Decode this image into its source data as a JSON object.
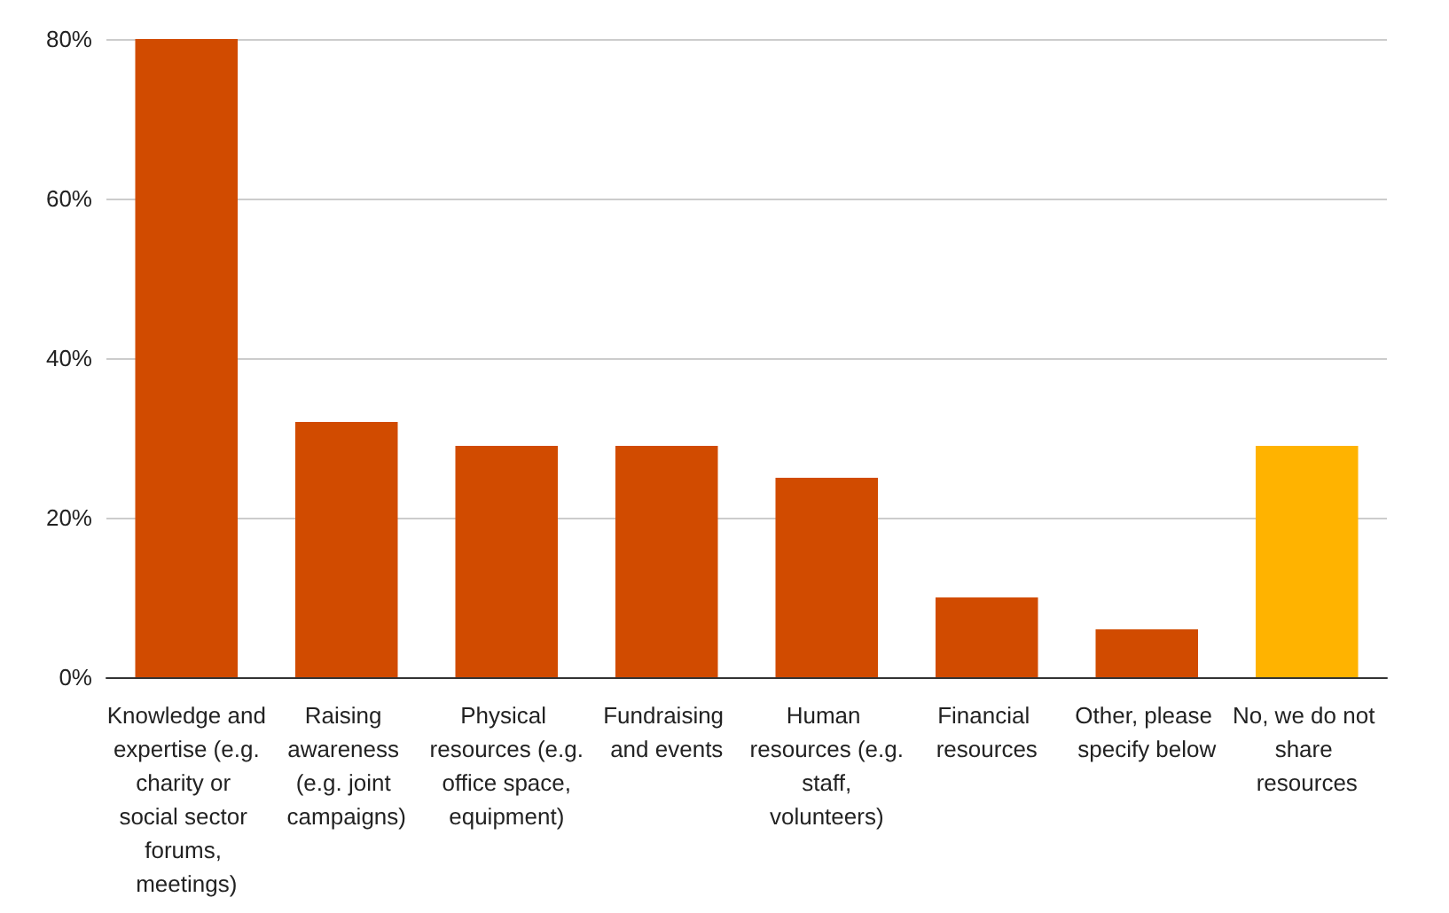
{
  "chart_data": {
    "type": "bar",
    "categories": [
      "Knowledge and expertise (e.g. charity or social sector forums, meetings)",
      "Raising awareness (e.g. joint campaigns)",
      "Physical resources (e.g. office space, equipment)",
      "Fundraising and events",
      "Human resources (e.g. staff, volunteers)",
      "Financial resources",
      "Other, please specify below",
      "No, we do not share resources"
    ],
    "values": [
      80,
      32,
      29,
      29,
      25,
      10,
      6,
      29
    ],
    "colors": [
      "#d14b00",
      "#d14b00",
      "#d14b00",
      "#d14b00",
      "#d14b00",
      "#d14b00",
      "#d14b00",
      "#ffb300"
    ],
    "ylim": [
      0,
      80
    ],
    "yticks": [
      {
        "value": 0,
        "label": "0%"
      },
      {
        "value": 20,
        "label": "20%"
      },
      {
        "value": 40,
        "label": "40%"
      },
      {
        "value": 60,
        "label": "60%"
      },
      {
        "value": 80,
        "label": "80%"
      }
    ],
    "grid": "y"
  }
}
